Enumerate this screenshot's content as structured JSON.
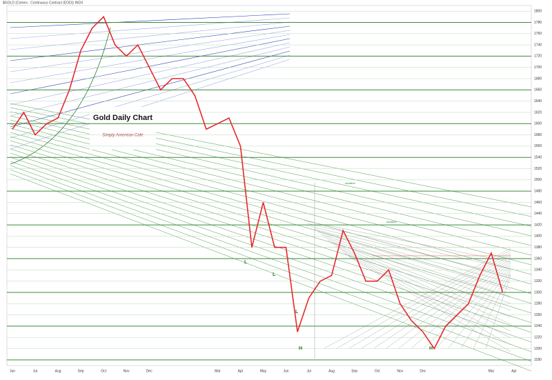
{
  "chart_data": {
    "type": "line",
    "title": "$GOLD (Comex - Continuous Contract (EOD)) INDX",
    "panel_title": "Gold Daily Chart",
    "logo": "Simply American Cafe",
    "annotations": [
      "L",
      "L",
      "L",
      "H",
      "H",
      "neckline",
      "neckline"
    ],
    "categories": [
      "Jun",
      null,
      "Jul",
      null,
      "Aug",
      null,
      "Sep",
      null,
      "Oct",
      null,
      "Nov",
      null,
      "Dec",
      null,
      null,
      null,
      null,
      null,
      "Mar",
      null,
      "Apr",
      null,
      "May",
      null,
      "Jun",
      null,
      "Jul",
      null,
      "Aug",
      null,
      "Sep",
      null,
      "Oct",
      null,
      "Nov",
      null,
      "Dec",
      null,
      null,
      null,
      null,
      null,
      "Mar",
      null,
      "Apr"
    ],
    "series": [
      {
        "name": "$GOLD",
        "color": "#e8262a",
        "values": [
          1590,
          1620,
          1580,
          1600,
          1610,
          1660,
          1730,
          1770,
          1790,
          1740,
          1720,
          1740,
          1700,
          1660,
          1680,
          1680,
          1650,
          1590,
          1600,
          1610,
          1560,
          1380,
          1460,
          1380,
          1380,
          1230,
          1290,
          1320,
          1330,
          1410,
          1370,
          1320,
          1320,
          1340,
          1280,
          1250,
          1230,
          1200,
          1240,
          1260,
          1280,
          1330,
          1370,
          1300,
          null
        ]
      }
    ],
    "ylim": [
      1170,
      1810
    ],
    "yticks": [
      1180,
      1200,
      1220,
      1240,
      1260,
      1280,
      1300,
      1320,
      1340,
      1360,
      1380,
      1400,
      1420,
      1440,
      1460,
      1480,
      1500,
      1520,
      1540,
      1560,
      1580,
      1600,
      1620,
      1640,
      1660,
      1680,
      1700,
      1720,
      1740,
      1760,
      1780,
      1800
    ],
    "grid": true
  }
}
